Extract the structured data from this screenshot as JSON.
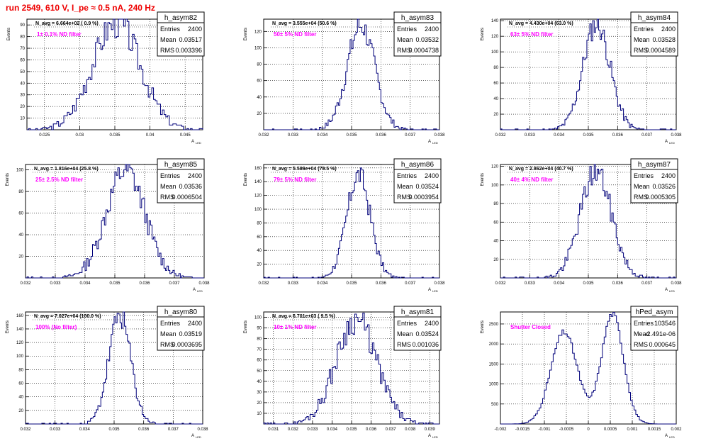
{
  "page_title": "run 2549,   610 V, I_pe ≈ 0.5 nA, 240 Hz",
  "colors": {
    "title": "#ee0000",
    "annotation": "#ff00ff",
    "histogram": "#00007a",
    "grid": "#000000"
  },
  "stat_labels": {
    "entries": "Entries",
    "mean": "Mean",
    "rms": "RMS"
  },
  "y_axis_label": "Events",
  "x_axis_label": "A",
  "x_axis_sub": "LED",
  "chart_data": [
    {
      "type": "histogram",
      "name": "h_asym82",
      "navg": "N_avg = 6.664e+02 ( 0.9 %)",
      "annotation": "1± 0.1% ND filter",
      "entries": "2400",
      "mean": "0.03517",
      "rms": "0.003396",
      "xlim": [
        0.0225,
        0.0475
      ],
      "ylim": [
        0,
        95
      ],
      "xticks": [
        0.025,
        0.03,
        0.035,
        0.04,
        0.045
      ],
      "xtick_labels": [
        "0.025",
        "0.03",
        "0.035",
        "0.04",
        "0.045"
      ],
      "yticks": [
        10,
        20,
        30,
        40,
        50,
        60,
        70,
        80,
        90
      ],
      "ytick_labels": [
        "10",
        "20",
        "30",
        "40",
        "50",
        "60",
        "70",
        "80",
        "90"
      ],
      "center": 0.0352,
      "sigma": 0.0034,
      "peak": 92,
      "bins": 100,
      "seed": 3
    },
    {
      "type": "histogram",
      "name": "h_asym83",
      "navg": "N_avg = 3.555e+04 (50.6 %)",
      "annotation": "50± 5% ND filter",
      "entries": "2400",
      "mean": "0.03532",
      "rms": "0.0004738",
      "xlim": [
        0.032,
        0.038
      ],
      "ylim": [
        0,
        135
      ],
      "xticks": [
        0.032,
        0.033,
        0.034,
        0.035,
        0.036,
        0.037,
        0.038
      ],
      "xtick_labels": [
        "0.032",
        "0.033",
        "0.034",
        "0.035",
        "0.036",
        "0.037",
        "0.038"
      ],
      "yticks": [
        20,
        40,
        60,
        80,
        100,
        120
      ],
      "ytick_labels": [
        "20",
        "40",
        "60",
        "80",
        "100",
        "120"
      ],
      "center": 0.03532,
      "sigma": 0.00047,
      "peak": 127,
      "bins": 120,
      "seed": 7
    },
    {
      "type": "histogram",
      "name": "h_asym84",
      "navg": "N_avg = 4.430e+04 (63.0 %)",
      "annotation": "63± 5% ND filter",
      "entries": "2400",
      "mean": "0.03528",
      "rms": "0.0004589",
      "xlim": [
        0.032,
        0.038
      ],
      "ylim": [
        0,
        142
      ],
      "xticks": [
        0.032,
        0.033,
        0.034,
        0.035,
        0.036,
        0.037,
        0.038
      ],
      "xtick_labels": [
        "0.032",
        "0.033",
        "0.034",
        "0.035",
        "0.036",
        "0.037",
        "0.038"
      ],
      "yticks": [
        20,
        40,
        60,
        80,
        100,
        120,
        140
      ],
      "ytick_labels": [
        "20",
        "40",
        "60",
        "80",
        "100",
        "120",
        "140"
      ],
      "center": 0.03528,
      "sigma": 0.00046,
      "peak": 136,
      "bins": 120,
      "seed": 11
    },
    {
      "type": "histogram",
      "name": "h_asym85",
      "navg": "N_avg = 1.816e+04 (25.8 %)",
      "annotation": "25± 2.5% ND filter",
      "entries": "2400",
      "mean": "0.03536",
      "rms": "0.0006504",
      "xlim": [
        0.032,
        0.038
      ],
      "ylim": [
        0,
        105
      ],
      "xticks": [
        0.032,
        0.033,
        0.034,
        0.035,
        0.036,
        0.037,
        0.038
      ],
      "xtick_labels": [
        "0.032",
        "0.033",
        "0.034",
        "0.035",
        "0.036",
        "0.037",
        "0.038"
      ],
      "yticks": [
        20,
        40,
        60,
        80,
        100
      ],
      "ytick_labels": [
        "20",
        "40",
        "60",
        "80",
        "100"
      ],
      "center": 0.03536,
      "sigma": 0.00065,
      "peak": 100,
      "bins": 120,
      "seed": 13
    },
    {
      "type": "histogram",
      "name": "h_asym86",
      "navg": "N_avg = 5.586e+04 (79.5 %)",
      "annotation": "79± 5% ND filter",
      "entries": "2400",
      "mean": "0.03524",
      "rms": "0.0003954",
      "xlim": [
        0.032,
        0.038
      ],
      "ylim": [
        0,
        165
      ],
      "xticks": [
        0.032,
        0.033,
        0.034,
        0.035,
        0.036,
        0.037,
        0.038
      ],
      "xtick_labels": [
        "0.032",
        "0.033",
        "0.034",
        "0.035",
        "0.036",
        "0.037",
        "0.038"
      ],
      "yticks": [
        20,
        40,
        60,
        80,
        100,
        120,
        140,
        160
      ],
      "ytick_labels": [
        "20",
        "40",
        "60",
        "80",
        "100",
        "120",
        "140",
        "160"
      ],
      "center": 0.03524,
      "sigma": 0.0004,
      "peak": 150,
      "bins": 120,
      "seed": 17
    },
    {
      "type": "histogram",
      "name": "h_asym87",
      "navg": "N_avg = 2.862e+04 (40.7 %)",
      "annotation": "40± 4% ND filter",
      "entries": "2400",
      "mean": "0.03526",
      "rms": "0.0005305",
      "xlim": [
        0.032,
        0.038
      ],
      "ylim": [
        0,
        122
      ],
      "xticks": [
        0.032,
        0.033,
        0.034,
        0.035,
        0.036,
        0.037,
        0.038
      ],
      "xtick_labels": [
        "0.032",
        "0.033",
        "0.034",
        "0.035",
        "0.036",
        "0.037",
        "0.038"
      ],
      "yticks": [
        20,
        40,
        60,
        80,
        100,
        120
      ],
      "ytick_labels": [
        "20",
        "40",
        "60",
        "80",
        "100",
        "120"
      ],
      "center": 0.03526,
      "sigma": 0.00053,
      "peak": 115,
      "bins": 120,
      "seed": 19
    },
    {
      "type": "histogram",
      "name": "h_asym80",
      "navg": "N_avg = 7.027e+04 (100.0 %)",
      "annotation": "100% (No filter)",
      "entries": "2400",
      "mean": "0.03519",
      "rms": "0.0003695",
      "xlim": [
        0.032,
        0.038
      ],
      "ylim": [
        0,
        165
      ],
      "xticks": [
        0.032,
        0.033,
        0.034,
        0.035,
        0.036,
        0.037,
        0.038
      ],
      "xtick_labels": [
        "0.032",
        "0.033",
        "0.034",
        "0.035",
        "0.036",
        "0.037",
        "0.038"
      ],
      "yticks": [
        20,
        40,
        60,
        80,
        100,
        120,
        140,
        160
      ],
      "ytick_labels": [
        "20",
        "40",
        "60",
        "80",
        "100",
        "120",
        "140",
        "160"
      ],
      "center": 0.03519,
      "sigma": 0.00037,
      "peak": 160,
      "bins": 120,
      "seed": 23
    },
    {
      "type": "histogram",
      "name": "h_asym81",
      "navg": "N_avg = 6.701e+03 ( 9.5 %)",
      "annotation": "10± 1% ND filter",
      "entries": "2400",
      "mean": "0.03524",
      "rms": "0.001036",
      "xlim": [
        0.0305,
        0.0395
      ],
      "ylim": [
        0,
        105
      ],
      "xticks": [
        0.031,
        0.032,
        0.033,
        0.034,
        0.035,
        0.036,
        0.037,
        0.038,
        0.039
      ],
      "xtick_labels": [
        "0.031",
        "0.032",
        "0.033",
        "0.034",
        "0.035",
        "0.036",
        "0.037",
        "0.038",
        "0.039"
      ],
      "yticks": [
        10,
        20,
        30,
        40,
        50,
        60,
        70,
        80,
        90,
        100
      ],
      "ytick_labels": [
        "10",
        "20",
        "30",
        "40",
        "50",
        "60",
        "70",
        "80",
        "90",
        "100"
      ],
      "center": 0.03524,
      "sigma": 0.00104,
      "peak": 98,
      "bins": 110,
      "seed": 29
    },
    {
      "type": "histogram",
      "name": "hPed_asym",
      "navg": "",
      "annotation": "Shutter Closed",
      "entries": "103546",
      "mean": "-2.491e-06",
      "rms": "0.000645",
      "xlim": [
        -0.002,
        0.002
      ],
      "ylim": [
        0,
        2800
      ],
      "xticks": [
        -0.002,
        -0.0015,
        -0.001,
        -0.0005,
        0,
        0.0005,
        0.001,
        0.0015,
        0.002
      ],
      "xtick_labels": [
        "-0.002",
        "-0.0015",
        "-0.001",
        "-0.0005",
        "0",
        "0.0005",
        "0.001",
        "0.0015",
        "0.002"
      ],
      "yticks": [
        500,
        1000,
        1500,
        2000,
        2500
      ],
      "ytick_labels": [
        "500",
        "1000",
        "1500",
        "2000",
        "2500"
      ],
      "bimodal": true,
      "peaks": [
        [
          -0.00055,
          0.0003,
          2300
        ],
        [
          0.00055,
          0.00025,
          2750
        ]
      ],
      "bins": 100,
      "seed": 31
    }
  ]
}
